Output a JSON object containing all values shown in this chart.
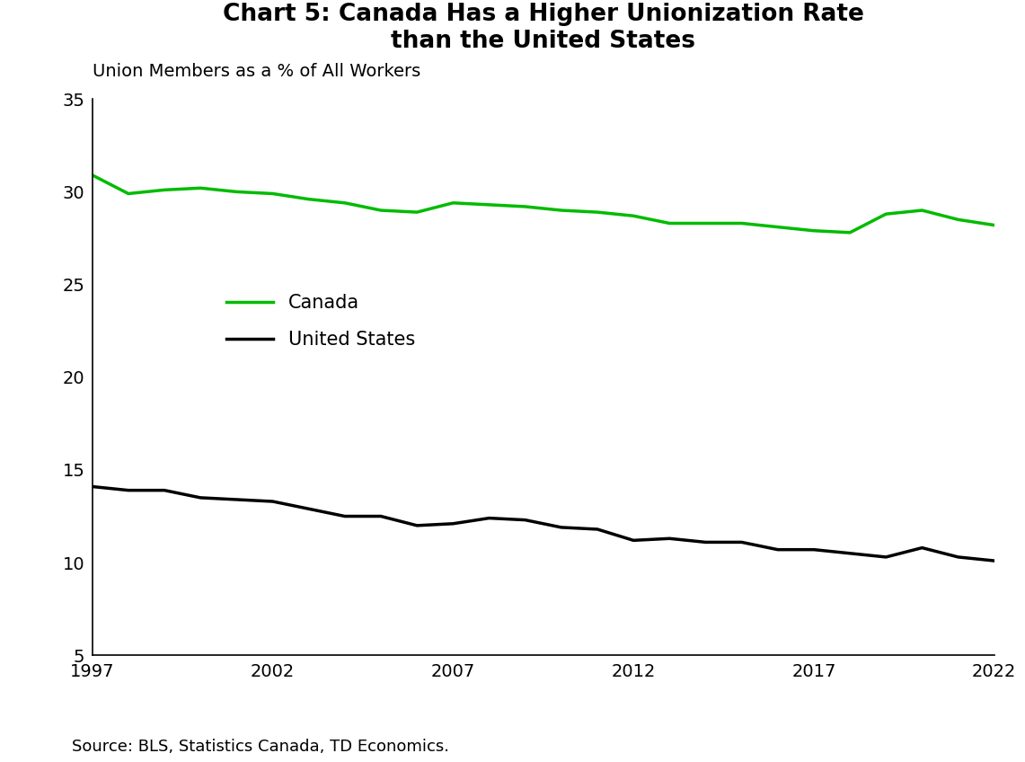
{
  "title": "Chart 5: Canada Has a Higher Unionization Rate\nthan the United States",
  "ylabel": "Union Members as a % of All Workers",
  "source": "Source: BLS, Statistics Canada, TD Economics.",
  "years": [
    1997,
    1998,
    1999,
    2000,
    2001,
    2002,
    2003,
    2004,
    2005,
    2006,
    2007,
    2008,
    2009,
    2010,
    2011,
    2012,
    2013,
    2014,
    2015,
    2016,
    2017,
    2018,
    2019,
    2020,
    2021,
    2022
  ],
  "canada": [
    30.9,
    29.9,
    30.1,
    30.2,
    30.0,
    29.9,
    29.6,
    29.4,
    29.0,
    28.9,
    29.4,
    29.3,
    29.2,
    29.0,
    28.9,
    28.7,
    28.3,
    28.3,
    28.3,
    28.1,
    27.9,
    27.8,
    28.8,
    29.0,
    28.5,
    28.2
  ],
  "us": [
    14.1,
    13.9,
    13.9,
    13.5,
    13.4,
    13.3,
    12.9,
    12.5,
    12.5,
    12.0,
    12.1,
    12.4,
    12.3,
    11.9,
    11.8,
    11.2,
    11.3,
    11.1,
    11.1,
    10.7,
    10.7,
    10.5,
    10.3,
    10.8,
    10.3,
    10.1
  ],
  "canada_color": "#00bb00",
  "us_color": "#000000",
  "line_width": 2.5,
  "ylim": [
    5,
    35
  ],
  "yticks": [
    5,
    10,
    15,
    20,
    25,
    30,
    35
  ],
  "xticks": [
    1997,
    2002,
    2007,
    2012,
    2017,
    2022
  ],
  "title_fontsize": 19,
  "label_fontsize": 14,
  "tick_fontsize": 14,
  "legend_fontsize": 15,
  "source_fontsize": 13,
  "background_color": "#ffffff"
}
